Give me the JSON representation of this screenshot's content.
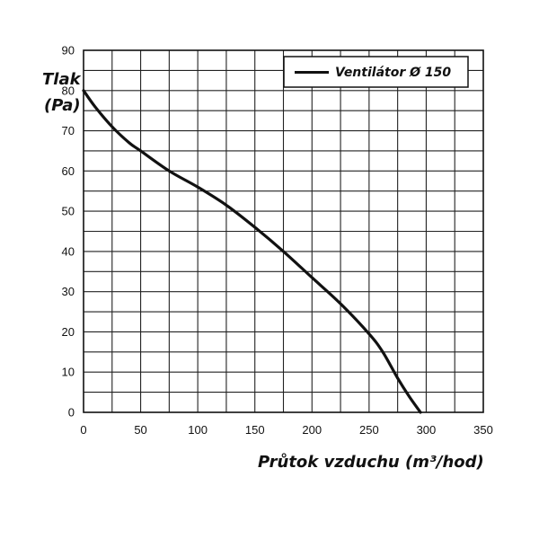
{
  "chart_data": {
    "type": "line",
    "title": "",
    "xlabel": "Průtok vzduchu (m³/hod)",
    "ylabel": [
      "Tlak",
      "(Pa)"
    ],
    "xlim": [
      0,
      350
    ],
    "ylim": [
      0,
      90
    ],
    "x_ticks": [
      "0",
      "50",
      "100",
      "150",
      "200",
      "250",
      "300",
      "350"
    ],
    "y_ticks": [
      "0",
      "10",
      "20",
      "30",
      "40",
      "50",
      "60",
      "70",
      "80",
      "90"
    ],
    "grid": true,
    "legend_position": "top-right",
    "colors": {
      "line": "#111111",
      "grid": "#222222",
      "background": "#ffffff"
    },
    "series": [
      {
        "name": "Ventilátor Ø 150",
        "x": [
          0,
          10,
          25,
          40,
          50,
          75,
          100,
          125,
          150,
          175,
          200,
          225,
          250,
          262,
          275,
          285,
          295
        ],
        "y": [
          80,
          76,
          71,
          67,
          65,
          60,
          56,
          51.5,
          46,
          40,
          33.5,
          27,
          19.5,
          15,
          8.5,
          4,
          0
        ]
      }
    ]
  }
}
